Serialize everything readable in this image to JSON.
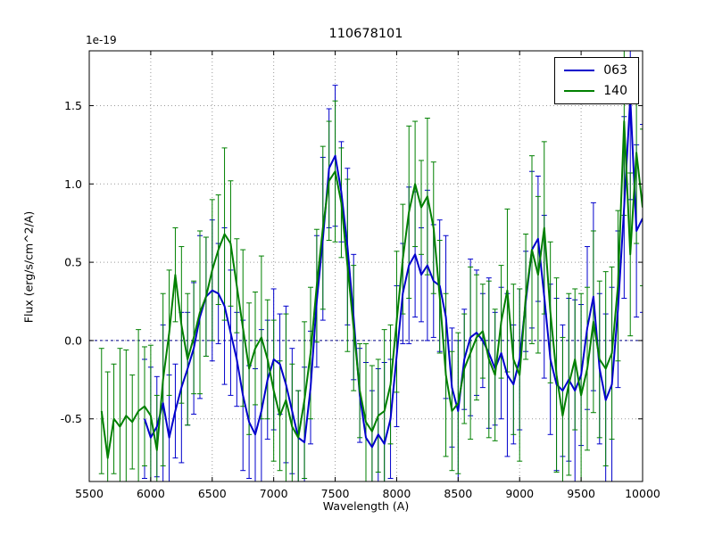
{
  "chart_data": {
    "type": "line",
    "title": "110678101",
    "xlabel": "Wavelength (A)",
    "ylabel": "Flux (erg/s/cm^2/A)",
    "offset_text": "1e-19",
    "xlim": [
      5500,
      10000
    ],
    "ylim": [
      -0.9,
      1.85
    ],
    "xticks": [
      5500,
      6000,
      6500,
      7000,
      7500,
      8000,
      8500,
      9000,
      9500,
      10000
    ],
    "xtick_labels": [
      "5500",
      "6000",
      "6500",
      "7000",
      "7500",
      "8000",
      "8500",
      "9000",
      "9500",
      "10000"
    ],
    "yticks": [
      -0.5,
      0.0,
      0.5,
      1.0,
      1.5
    ],
    "ytick_labels": [
      "-0.5",
      "0.0",
      "0.5",
      "1.0",
      "1.5"
    ],
    "grid": true,
    "zero_line": {
      "y": 0.0,
      "color": "#00008b",
      "style": "dashed"
    },
    "legend_position": "upper right",
    "series": [
      {
        "name": "063",
        "color": "#0000cc",
        "x_start": 5950,
        "x_step": 50,
        "y": [
          -0.5,
          -0.62,
          -0.55,
          -0.4,
          -0.62,
          -0.45,
          -0.3,
          -0.18,
          -0.05,
          0.15,
          0.28,
          0.32,
          0.3,
          0.22,
          0.05,
          -0.12,
          -0.35,
          -0.52,
          -0.6,
          -0.45,
          -0.25,
          -0.12,
          -0.15,
          -0.28,
          -0.45,
          -0.62,
          -0.65,
          -0.3,
          0.25,
          0.65,
          1.1,
          1.18,
          0.95,
          0.6,
          0.15,
          -0.35,
          -0.62,
          -0.68,
          -0.6,
          -0.66,
          -0.5,
          -0.1,
          0.3,
          0.48,
          0.55,
          0.42,
          0.48,
          0.38,
          0.35,
          0.15,
          -0.3,
          -0.45,
          -0.12,
          0.02,
          0.05,
          0.0,
          -0.08,
          -0.18,
          -0.08,
          -0.22,
          -0.28,
          -0.12,
          0.25,
          0.58,
          0.65,
          0.28,
          -0.12,
          -0.28,
          -0.32,
          -0.25,
          -0.32,
          -0.22,
          0.08,
          0.28,
          -0.18,
          -0.38,
          -0.28,
          0.2,
          0.85,
          1.55,
          0.7,
          0.78
        ],
        "yerr": [
          0.38,
          0.45,
          0.32,
          0.5,
          0.4,
          0.3,
          0.48,
          0.36,
          0.42,
          0.52,
          0.38,
          0.45,
          0.32,
          0.5,
          0.4,
          0.3,
          0.48,
          0.36,
          0.42,
          0.52,
          0.38,
          0.45,
          0.32,
          0.5,
          0.4,
          0.3,
          0.48,
          0.36,
          0.42,
          0.52,
          0.38,
          0.45,
          0.32,
          0.5,
          0.4,
          0.3,
          0.48,
          0.36,
          0.42,
          0.52,
          0.38,
          0.45,
          0.32,
          0.5,
          0.4,
          0.3,
          0.48,
          0.36,
          0.42,
          0.52,
          0.38,
          0.45,
          0.32,
          0.5,
          0.4,
          0.3,
          0.48,
          0.36,
          0.42,
          0.52,
          0.38,
          0.45,
          0.32,
          0.5,
          0.4,
          0.52,
          0.48,
          0.55,
          0.42,
          0.52,
          0.58,
          0.45,
          0.52,
          0.6,
          0.48,
          0.55,
          0.62,
          0.5,
          0.58,
          0.65,
          0.55,
          0.6
        ]
      },
      {
        "name": "140",
        "color": "#008000",
        "x_start": 5600,
        "x_step": 50,
        "y": [
          -0.45,
          -0.75,
          -0.5,
          -0.55,
          -0.48,
          -0.52,
          -0.45,
          -0.42,
          -0.48,
          -0.7,
          -0.25,
          0.05,
          0.42,
          0.1,
          -0.12,
          0.02,
          0.18,
          0.28,
          0.45,
          0.58,
          0.68,
          0.62,
          0.35,
          0.08,
          -0.18,
          -0.05,
          0.02,
          -0.12,
          -0.32,
          -0.48,
          -0.38,
          -0.55,
          -0.62,
          -0.38,
          -0.08,
          0.35,
          0.72,
          1.02,
          1.08,
          0.88,
          0.48,
          0.08,
          -0.32,
          -0.52,
          -0.58,
          -0.48,
          -0.45,
          -0.28,
          0.12,
          0.52,
          0.82,
          1.0,
          0.85,
          0.92,
          0.72,
          0.28,
          -0.22,
          -0.45,
          -0.4,
          -0.18,
          -0.08,
          0.02,
          0.06,
          -0.12,
          -0.22,
          0.12,
          0.32,
          -0.12,
          -0.22,
          0.28,
          0.58,
          0.42,
          0.72,
          0.18,
          -0.22,
          -0.48,
          -0.28,
          -0.12,
          -0.35,
          -0.18,
          0.12,
          -0.12,
          -0.18,
          -0.08,
          0.35,
          1.4,
          0.55,
          1.2,
          0.85
        ],
        "yerr": [
          0.4,
          0.55,
          0.35,
          0.5,
          0.42,
          0.3,
          0.52,
          0.38,
          0.45,
          0.35,
          0.55,
          0.4,
          0.3,
          0.5,
          0.42,
          0.36,
          0.52,
          0.38,
          0.45,
          0.35,
          0.55,
          0.4,
          0.3,
          0.5,
          0.42,
          0.36,
          0.52,
          0.38,
          0.45,
          0.35,
          0.55,
          0.4,
          0.3,
          0.5,
          0.42,
          0.36,
          0.52,
          0.38,
          0.45,
          0.35,
          0.55,
          0.4,
          0.3,
          0.5,
          0.42,
          0.36,
          0.52,
          0.38,
          0.45,
          0.35,
          0.55,
          0.4,
          0.3,
          0.5,
          0.42,
          0.36,
          0.52,
          0.38,
          0.45,
          0.35,
          0.55,
          0.4,
          0.3,
          0.5,
          0.42,
          0.36,
          0.52,
          0.48,
          0.55,
          0.4,
          0.6,
          0.5,
          0.55,
          0.45,
          0.62,
          0.5,
          0.58,
          0.45,
          0.65,
          0.52,
          0.58,
          0.5,
          0.62,
          0.55,
          0.48,
          0.6,
          0.52,
          0.58,
          0.5
        ]
      }
    ]
  }
}
